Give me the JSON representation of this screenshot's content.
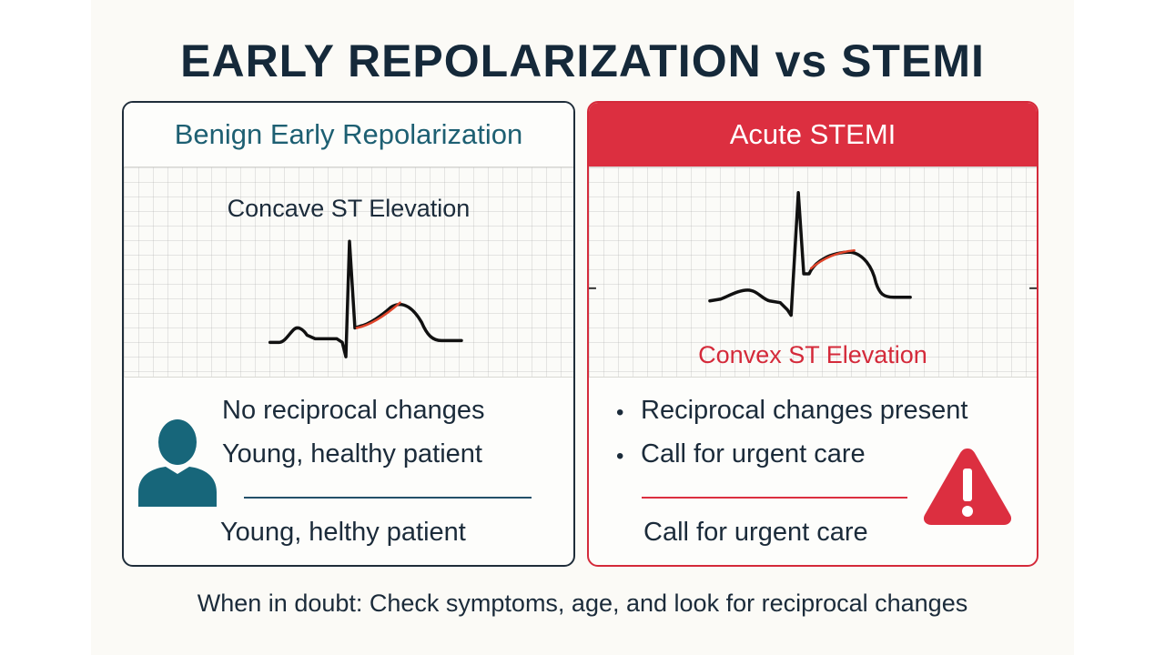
{
  "title": "EARLY REPOLARIZATION vs STEMI",
  "left": {
    "heading": "Benign Early Repolarization",
    "subheading": "Concave ST Elevation",
    "points": [
      "No reciprocal changes",
      "Young, healthy patient"
    ],
    "note": "Young, helthy patient",
    "icon": "person-icon"
  },
  "right": {
    "heading": "Acute STEMI",
    "subheading": "Convex ST Elevation",
    "points": [
      "Reciprocal changes present",
      "Call for urgent care"
    ],
    "note": "Call for urgent care",
    "icon": "warning-icon"
  },
  "footer": "When in doubt: Check symptoms, age, and look for reciprocal changes",
  "colors": {
    "teal": "#1d5f72",
    "red": "#dc2f40",
    "navy": "#15293a",
    "st_segment": "#e0442a"
  }
}
